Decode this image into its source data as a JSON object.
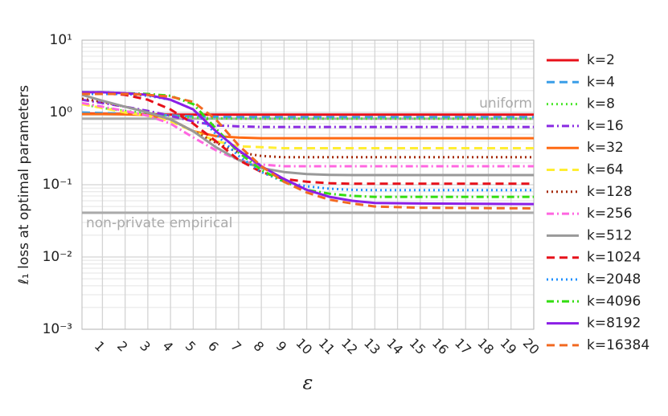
{
  "chart_data": {
    "type": "line",
    "ylabel": "ℓ₁ loss at optimal parameters",
    "xlabel": "ε",
    "log_y": true,
    "grid": true,
    "xlim": [
      0.1,
      20
    ],
    "ylim": [
      0.001,
      10
    ],
    "xticks": [
      1,
      2,
      3,
      4,
      5,
      6,
      7,
      8,
      9,
      10,
      11,
      12,
      13,
      14,
      15,
      16,
      17,
      18,
      19,
      20
    ],
    "yticks": [
      {
        "value": 0.001,
        "label": "10⁻³"
      },
      {
        "value": 0.01,
        "label": "10⁻²"
      },
      {
        "value": 0.1,
        "label": "10⁻¹"
      },
      {
        "value": 1,
        "label": "10⁰"
      },
      {
        "value": 10,
        "label": "10¹"
      }
    ],
    "reference_lines": [
      {
        "label": "uniform",
        "value": 0.82,
        "color": "#aaaaaa"
      },
      {
        "label": "non-private empirical",
        "value": 0.041,
        "color": "#aaaaaa"
      }
    ],
    "x": [
      0.1,
      1,
      2,
      3,
      4,
      5,
      6,
      7,
      8,
      9,
      10,
      11,
      12,
      13,
      15,
      20
    ],
    "series": [
      {
        "name": "k=2",
        "color": "#e8101a",
        "dash": "solid",
        "values": [
          0.97,
          0.96,
          0.95,
          0.94,
          0.93,
          0.93,
          0.93,
          0.93,
          0.93,
          0.93,
          0.93,
          0.93,
          0.93,
          0.93,
          0.93,
          0.93
        ]
      },
      {
        "name": "k=4",
        "color": "#3a9ee8",
        "dash": "dashed",
        "values": [
          1.0,
          0.98,
          0.96,
          0.94,
          0.91,
          0.88,
          0.87,
          0.86,
          0.86,
          0.86,
          0.86,
          0.86,
          0.86,
          0.86,
          0.86,
          0.86
        ]
      },
      {
        "name": "k=8",
        "color": "#4ce62e",
        "dash": "dotted",
        "values": [
          1.3,
          1.15,
          1.05,
          0.97,
          0.9,
          0.85,
          0.83,
          0.82,
          0.82,
          0.82,
          0.82,
          0.82,
          0.82,
          0.82,
          0.82,
          0.82
        ]
      },
      {
        "name": "k=16",
        "color": "#8a2be2",
        "dash": "dashdot",
        "values": [
          1.5,
          1.35,
          1.2,
          1.05,
          0.9,
          0.75,
          0.66,
          0.64,
          0.63,
          0.63,
          0.63,
          0.63,
          0.63,
          0.63,
          0.63,
          0.63
        ]
      },
      {
        "name": "k=32",
        "color": "#ff6a13",
        "dash": "solid",
        "values": [
          0.95,
          0.95,
          0.94,
          0.92,
          0.8,
          0.55,
          0.47,
          0.45,
          0.44,
          0.44,
          0.44,
          0.44,
          0.44,
          0.44,
          0.44,
          0.44
        ]
      },
      {
        "name": "k=64",
        "color": "#ffee33",
        "dash": "dashed",
        "values": [
          1.3,
          1.15,
          1.0,
          0.9,
          0.75,
          0.55,
          0.4,
          0.34,
          0.33,
          0.32,
          0.32,
          0.32,
          0.32,
          0.32,
          0.32,
          0.32
        ]
      },
      {
        "name": "k=128",
        "color": "#a52a0a",
        "dash": "dotted",
        "values": [
          1.55,
          1.4,
          1.2,
          1.0,
          0.8,
          0.55,
          0.38,
          0.28,
          0.25,
          0.24,
          0.24,
          0.24,
          0.24,
          0.24,
          0.24,
          0.24
        ]
      },
      {
        "name": "k=256",
        "color": "#ff66e0",
        "dash": "dashdot",
        "values": [
          1.35,
          1.2,
          1.05,
          0.9,
          0.7,
          0.45,
          0.3,
          0.22,
          0.19,
          0.18,
          0.18,
          0.18,
          0.18,
          0.18,
          0.18,
          0.18
        ]
      },
      {
        "name": "k=512",
        "color": "#999999",
        "dash": "solid",
        "values": [
          1.75,
          1.45,
          1.2,
          1.0,
          0.8,
          0.55,
          0.33,
          0.22,
          0.17,
          0.15,
          0.14,
          0.137,
          0.136,
          0.136,
          0.136,
          0.136
        ]
      },
      {
        "name": "k=1024",
        "color": "#e6101a",
        "dash": "dashed",
        "values": [
          1.9,
          1.85,
          1.75,
          1.5,
          1.1,
          0.7,
          0.4,
          0.22,
          0.15,
          0.12,
          0.11,
          0.105,
          0.103,
          0.103,
          0.103,
          0.103
        ]
      },
      {
        "name": "k=2048",
        "color": "#1e90ff",
        "dash": "dotted",
        "values": [
          1.8,
          1.8,
          1.8,
          1.7,
          1.5,
          1.1,
          0.5,
          0.25,
          0.15,
          0.11,
          0.095,
          0.088,
          0.085,
          0.084,
          0.084,
          0.084
        ]
      },
      {
        "name": "k=4096",
        "color": "#33dd11",
        "dash": "dashdot",
        "values": [
          1.9,
          1.9,
          1.85,
          1.8,
          1.7,
          1.3,
          0.6,
          0.28,
          0.16,
          0.11,
          0.085,
          0.075,
          0.07,
          0.068,
          0.068,
          0.068
        ]
      },
      {
        "name": "k=8192",
        "color": "#8b1fe6",
        "dash": "solid",
        "values": [
          1.9,
          1.9,
          1.85,
          1.75,
          1.5,
          1.1,
          0.55,
          0.3,
          0.18,
          0.12,
          0.085,
          0.068,
          0.06,
          0.056,
          0.055,
          0.054
        ]
      },
      {
        "name": "k=16384",
        "color": "#f26a22",
        "dash": "dashed",
        "values": [
          1.8,
          1.8,
          1.8,
          1.75,
          1.65,
          1.4,
          0.8,
          0.35,
          0.18,
          0.11,
          0.078,
          0.062,
          0.055,
          0.05,
          0.048,
          0.047
        ]
      }
    ]
  }
}
